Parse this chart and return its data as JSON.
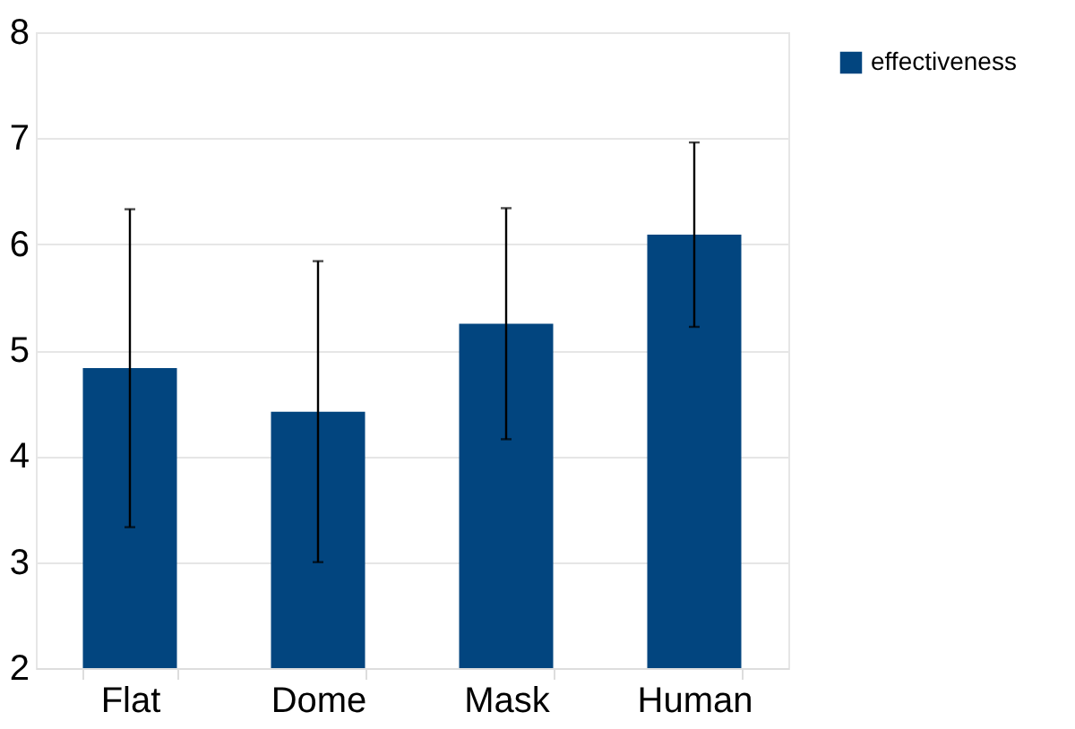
{
  "chart_data": {
    "type": "bar",
    "categories": [
      "Flat",
      "Dome",
      "Mask",
      "Human"
    ],
    "series": [
      {
        "name": "effectiveness",
        "color": "#02457f",
        "values": [
          4.83,
          4.42,
          5.25,
          6.09
        ],
        "errors": [
          1.5,
          1.42,
          1.09,
          0.87
        ]
      }
    ],
    "ylim": [
      2,
      8
    ],
    "yticks": [
      2,
      3,
      4,
      5,
      6,
      7,
      8
    ],
    "grid": "y",
    "legend": "right"
  }
}
